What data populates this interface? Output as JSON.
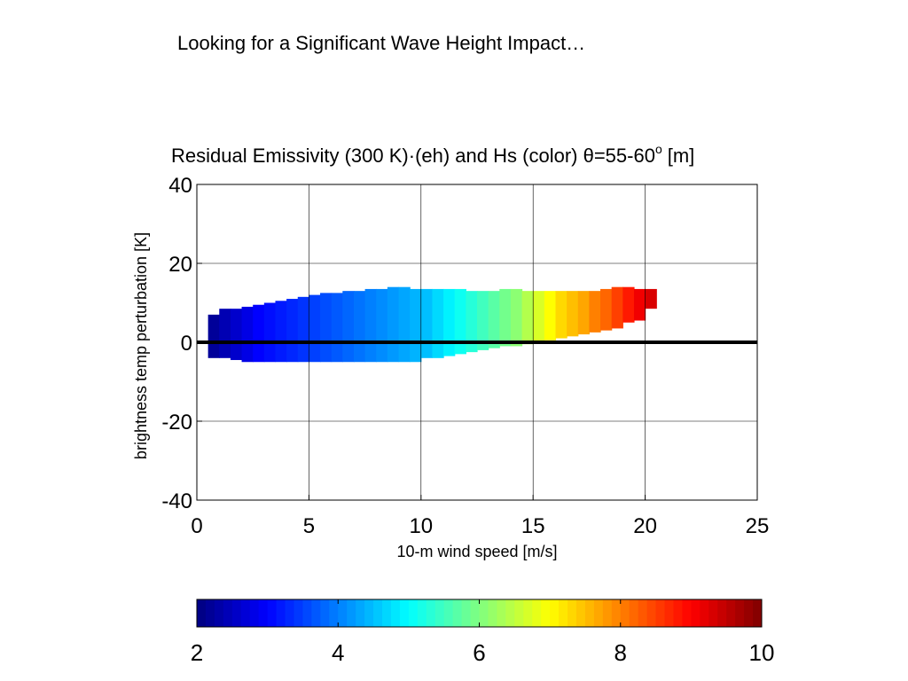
{
  "slide": {
    "title": "Looking for a Significant Wave Height Impact…"
  },
  "chart_data": {
    "type": "heatmap",
    "title_main": "Residual Emissivity (300 K)·(eh) and Hs (color) θ=55-60",
    "title_superscript": "o",
    "title_units": "[m]",
    "xlabel": "10-m wind speed [m/s]",
    "ylabel": "brightness temp perturbation [K]",
    "xlim": [
      0,
      25
    ],
    "ylim": [
      -40,
      40
    ],
    "xticks": [
      0,
      5,
      10,
      15,
      20,
      25
    ],
    "yticks": [
      -40,
      -20,
      0,
      20,
      40
    ],
    "grid": true,
    "reference_line_y": 0,
    "colorbar": {
      "orientation": "horizontal",
      "colormap": "jet",
      "clim": [
        2,
        10
      ],
      "ticks": [
        2,
        4,
        6,
        8,
        10
      ]
    },
    "envelope": {
      "x": [
        0.5,
        1.0,
        1.5,
        2.0,
        2.5,
        3.0,
        3.5,
        4.0,
        4.5,
        5.0,
        5.5,
        6.0,
        6.5,
        7.0,
        7.5,
        8.0,
        8.5,
        9.0,
        9.5,
        10.0,
        10.5,
        11.0,
        11.5,
        12.0,
        12.5,
        13.0,
        13.5,
        14.0,
        14.5,
        15.0,
        15.5,
        16.0,
        16.5,
        17.0,
        17.5,
        18.0,
        18.5,
        19.0,
        19.5,
        20.0
      ],
      "upper": [
        7,
        8.5,
        8.5,
        9,
        9.5,
        10,
        10.5,
        11,
        11.5,
        12,
        12.5,
        12.5,
        13,
        13,
        13.5,
        13.5,
        14,
        14,
        13.5,
        13.5,
        13.5,
        13.5,
        13.5,
        13,
        13,
        13,
        13.5,
        13.5,
        13,
        13,
        13,
        13,
        13,
        13,
        13,
        13.5,
        14,
        14,
        13.5,
        13.5
      ],
      "lower": [
        -4,
        -4,
        -4.5,
        -5,
        -5,
        -5,
        -5,
        -5,
        -5,
        -5,
        -5,
        -5,
        -5,
        -5,
        -5,
        -5,
        -5,
        -5,
        -5,
        -4,
        -4,
        -3.5,
        -3,
        -2.5,
        -2,
        -1.5,
        -1,
        -1,
        -0.5,
        0,
        0.5,
        1,
        1.5,
        2,
        2.5,
        3,
        3.5,
        5,
        5.5,
        8.5
      ],
      "hs": [
        2.2,
        2.4,
        2.6,
        2.8,
        3.0,
        3.1,
        3.2,
        3.3,
        3.4,
        3.5,
        3.6,
        3.7,
        3.8,
        3.9,
        4.0,
        4.1,
        4.2,
        4.3,
        4.4,
        4.5,
        4.7,
        4.9,
        5.1,
        5.3,
        5.5,
        5.7,
        5.9,
        6.1,
        6.4,
        6.7,
        7.0,
        7.3,
        7.5,
        7.7,
        8.0,
        8.2,
        8.5,
        8.8,
        9.1,
        9.3
      ]
    }
  }
}
